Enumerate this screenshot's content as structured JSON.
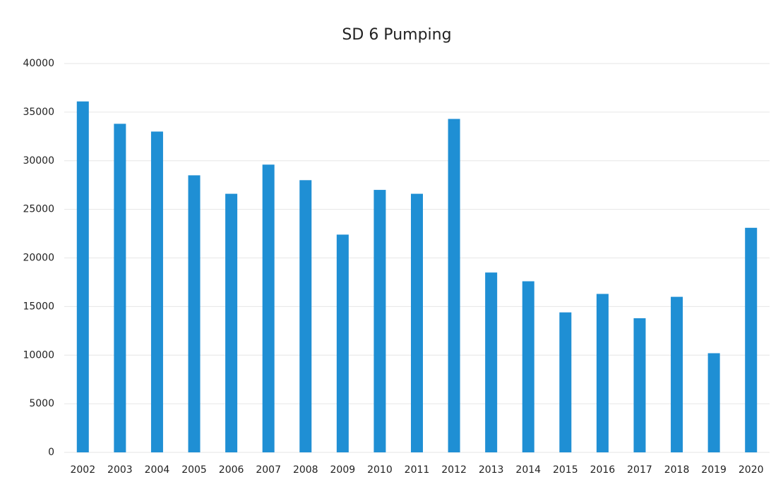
{
  "chart_data": {
    "type": "bar",
    "title": "SD 6 Pumping",
    "categories": [
      "2002",
      "2003",
      "2004",
      "2005",
      "2006",
      "2007",
      "2008",
      "2009",
      "2010",
      "2011",
      "2012",
      "2013",
      "2014",
      "2015",
      "2016",
      "2017",
      "2018",
      "2019",
      "2020"
    ],
    "values": [
      36100,
      33800,
      33000,
      28500,
      26600,
      29600,
      28000,
      22400,
      27000,
      26600,
      34300,
      18500,
      17600,
      14400,
      16300,
      13800,
      16000,
      10200,
      23100
    ],
    "color": "#1f8fd4",
    "ylim": [
      0,
      40000
    ],
    "yticks": [
      0,
      5000,
      10000,
      15000,
      20000,
      25000,
      30000,
      35000,
      40000
    ],
    "grid": true
  }
}
